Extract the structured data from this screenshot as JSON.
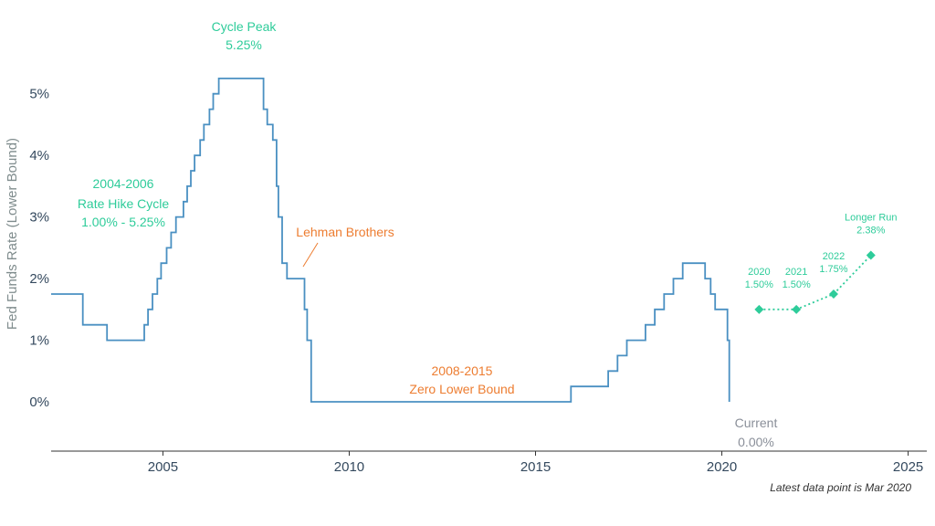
{
  "chart_data": {
    "type": "line",
    "ylabel": "Fed Funds Rate (Lower Bound)",
    "xlabel": "",
    "xlim": [
      2002,
      2025.5
    ],
    "ylim": [
      -0.8,
      5.9
    ],
    "x_ticks": [
      2005,
      2010,
      2015,
      2020,
      2025
    ],
    "y_ticks": [
      0,
      1,
      2,
      3,
      4,
      5
    ],
    "y_tick_labels": [
      "0%",
      "1%",
      "2%",
      "3%",
      "4%",
      "5%"
    ],
    "colors": {
      "series": "#4a90c2",
      "green": "#2ecc9a",
      "orange": "#ed7d31",
      "gray": "#8a8f99"
    },
    "series": [
      {
        "type": "step",
        "points": [
          [
            2002.0,
            1.75
          ],
          [
            2002.85,
            1.75
          ],
          [
            2002.85,
            1.25
          ],
          [
            2003.5,
            1.25
          ],
          [
            2003.5,
            1.0
          ],
          [
            2004.5,
            1.0
          ],
          [
            2004.5,
            1.25
          ],
          [
            2004.6,
            1.25
          ],
          [
            2004.6,
            1.5
          ],
          [
            2004.72,
            1.5
          ],
          [
            2004.72,
            1.75
          ],
          [
            2004.85,
            1.75
          ],
          [
            2004.85,
            2.0
          ],
          [
            2004.95,
            2.0
          ],
          [
            2004.95,
            2.25
          ],
          [
            2005.1,
            2.25
          ],
          [
            2005.1,
            2.5
          ],
          [
            2005.22,
            2.5
          ],
          [
            2005.22,
            2.75
          ],
          [
            2005.35,
            2.75
          ],
          [
            2005.35,
            3.0
          ],
          [
            2005.55,
            3.0
          ],
          [
            2005.55,
            3.25
          ],
          [
            2005.65,
            3.25
          ],
          [
            2005.65,
            3.5
          ],
          [
            2005.75,
            3.5
          ],
          [
            2005.75,
            3.75
          ],
          [
            2005.85,
            3.75
          ],
          [
            2005.85,
            4.0
          ],
          [
            2006.0,
            4.0
          ],
          [
            2006.0,
            4.25
          ],
          [
            2006.1,
            4.25
          ],
          [
            2006.1,
            4.5
          ],
          [
            2006.25,
            4.5
          ],
          [
            2006.25,
            4.75
          ],
          [
            2006.35,
            4.75
          ],
          [
            2006.35,
            5.0
          ],
          [
            2006.5,
            5.0
          ],
          [
            2006.5,
            5.25
          ],
          [
            2007.7,
            5.25
          ],
          [
            2007.7,
            4.75
          ],
          [
            2007.8,
            4.75
          ],
          [
            2007.8,
            4.5
          ],
          [
            2007.95,
            4.5
          ],
          [
            2007.95,
            4.25
          ],
          [
            2008.05,
            4.25
          ],
          [
            2008.05,
            3.5
          ],
          [
            2008.1,
            3.5
          ],
          [
            2008.1,
            3.0
          ],
          [
            2008.2,
            3.0
          ],
          [
            2008.2,
            2.25
          ],
          [
            2008.33,
            2.25
          ],
          [
            2008.33,
            2.0
          ],
          [
            2008.8,
            2.0
          ],
          [
            2008.8,
            1.5
          ],
          [
            2008.87,
            1.5
          ],
          [
            2008.87,
            1.0
          ],
          [
            2008.98,
            1.0
          ],
          [
            2008.98,
            0.0
          ],
          [
            2015.95,
            0.0
          ],
          [
            2015.95,
            0.25
          ],
          [
            2016.95,
            0.25
          ],
          [
            2016.95,
            0.5
          ],
          [
            2017.2,
            0.5
          ],
          [
            2017.2,
            0.75
          ],
          [
            2017.45,
            0.75
          ],
          [
            2017.45,
            1.0
          ],
          [
            2017.95,
            1.0
          ],
          [
            2017.95,
            1.25
          ],
          [
            2018.2,
            1.25
          ],
          [
            2018.2,
            1.5
          ],
          [
            2018.45,
            1.5
          ],
          [
            2018.45,
            1.75
          ],
          [
            2018.7,
            1.75
          ],
          [
            2018.7,
            2.0
          ],
          [
            2018.95,
            2.0
          ],
          [
            2018.95,
            2.25
          ],
          [
            2019.55,
            2.25
          ],
          [
            2019.55,
            2.0
          ],
          [
            2019.7,
            2.0
          ],
          [
            2019.7,
            1.75
          ],
          [
            2019.82,
            1.75
          ],
          [
            2019.82,
            1.5
          ],
          [
            2020.15,
            1.5
          ],
          [
            2020.15,
            1.0
          ],
          [
            2020.2,
            1.0
          ],
          [
            2020.2,
            0.0
          ]
        ]
      },
      {
        "type": "projection",
        "points": [
          {
            "x": 2021,
            "y": 1.5,
            "label_year": "2020",
            "label_value": "1.50%"
          },
          {
            "x": 2022,
            "y": 1.5,
            "label_year": "2021",
            "label_value": "1.50%"
          },
          {
            "x": 2023,
            "y": 1.75,
            "label_year": "2022",
            "label_value": "1.75%"
          },
          {
            "x": 2024,
            "y": 2.38,
            "label_year": "Longer Run",
            "label_value": "2.38%"
          }
        ]
      }
    ],
    "annotations": {
      "cycle_peak": [
        "Cycle Peak",
        "5.25%"
      ],
      "hike_cycle": [
        "2004-2006",
        "Rate Hike Cycle",
        "1.00% - 5.25%"
      ],
      "lehman": "Lehman Brothers",
      "zlb": [
        "2008-2015",
        "Zero Lower Bound"
      ],
      "current": [
        "Current",
        "0.00%"
      ]
    },
    "footnote": "Latest data point is Mar 2020"
  }
}
